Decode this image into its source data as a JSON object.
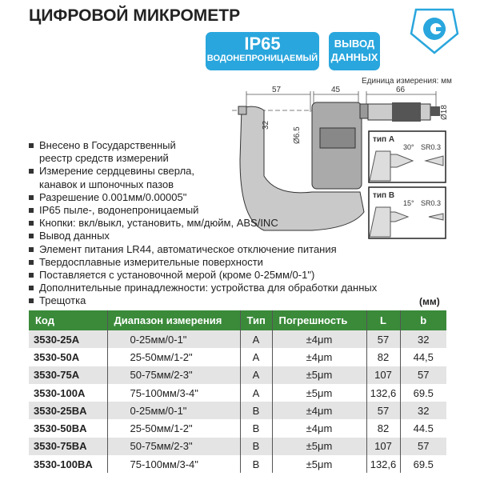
{
  "title": "ЦИФРОВОЙ МИКРОМЕТР",
  "badges": {
    "ip": "IP65",
    "ip_sub": "ВОДОНЕПРОНИЦАЕМЫЙ",
    "output_1": "ВЫВОД",
    "output_2": "ДАННЫХ"
  },
  "diagram": {
    "unit": "Единица измерения: мм",
    "dim_57": "57",
    "dim_45": "45",
    "dim_66": "66",
    "dim_32": "32",
    "dim_65": "Ø6.5",
    "dim_18": "Ø18",
    "typeA": {
      "label": "тип А",
      "angle": "30°",
      "radius": "SR0.3"
    },
    "typeB": {
      "label": "тип В",
      "angle": "15°",
      "radius": "SR0.3"
    }
  },
  "features": [
    "Внесено в Государственный",
    "реестр средств измерений",
    "Измерение сердцевины сверла,",
    "канавок и шпоночных пазов",
    "Разрешение 0.001мм/0.00005\"",
    "IP65 пыле-, водонепроницаемый",
    "Кнопки: вкл/выкл, установить, мм/дюйм, ABS/INC",
    "Вывод данных",
    "Элемент питания LR44, автоматическое отключение питания",
    "Твердосплавные измерительные поверхности",
    "Поставляется с установочной мерой (кроме 0-25мм/0-1\")",
    "Дополнительные принадлежности: устройства для обработки данных",
    "Трещотка"
  ],
  "feature_bullets": [
    true,
    false,
    true,
    false,
    true,
    true,
    true,
    true,
    true,
    true,
    true,
    true,
    true
  ],
  "table_unit": "(мм)",
  "table": {
    "headers": [
      "Код",
      "Диапазон измерения",
      "Тип",
      "Погрешность",
      "L",
      "b"
    ],
    "rows": [
      [
        "3530-25A",
        "0-25мм/0-1\"",
        "A",
        "±4μm",
        "57",
        "32"
      ],
      [
        "3530-50A",
        "25-50мм/1-2\"",
        "A",
        "±4μm",
        "82",
        "44,5"
      ],
      [
        "3530-75A",
        "50-75мм/2-3\"",
        "A",
        "±5μm",
        "107",
        "57"
      ],
      [
        "3530-100A",
        "75-100мм/3-4\"",
        "A",
        "±5μm",
        "132,6",
        "69.5"
      ],
      [
        "3530-25BA",
        "0-25мм/0-1\"",
        "B",
        "±4μm",
        "57",
        "32"
      ],
      [
        "3530-50BA",
        "25-50мм/1-2\"",
        "B",
        "±4μm",
        "82",
        "44.5"
      ],
      [
        "3530-75BA",
        "50-75мм/2-3\"",
        "B",
        "±5μm",
        "107",
        "57"
      ],
      [
        "3530-100BA",
        "75-100мм/3-4\"",
        "B",
        "±5μm",
        "132,6",
        "69.5"
      ]
    ]
  },
  "colors": {
    "badge": "#29a6dd",
    "table_header": "#3a8a3a",
    "logo": "#29a6dd"
  }
}
